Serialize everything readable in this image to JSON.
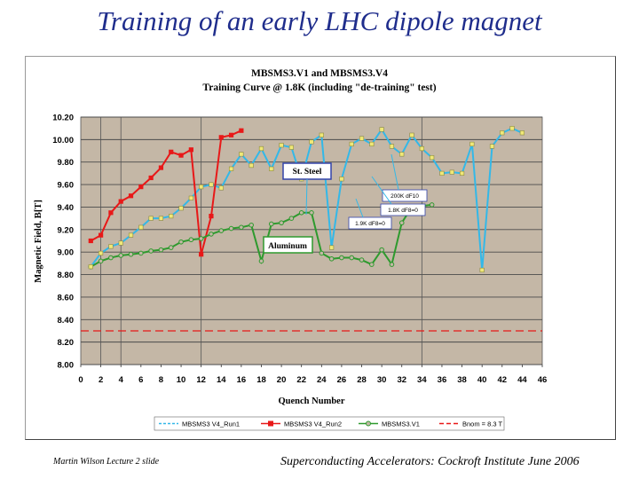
{
  "slide": {
    "title": "Training of an early LHC dipole magnet",
    "footer_left": "Martin Wilson Lecture 2 slide",
    "footer_right": "Superconducting Accelerators:  Cockroft Institute June 2006"
  },
  "chart_data": {
    "type": "line",
    "title": "MBSMS3.V1 and MBSMS3.V4",
    "subtitle": "Training Curve @ 1.8K (including \"de-training\" test)",
    "xlabel": "Quench Number",
    "ylabel": "Magnetic Field, B[T]",
    "xlim": [
      0,
      46
    ],
    "ylim": [
      8.0,
      10.2
    ],
    "xticks": [
      "0",
      "2",
      "4",
      "6",
      "8",
      "10",
      "12",
      "14",
      "16",
      "18",
      "20",
      "22",
      "24",
      "26",
      "28",
      "30",
      "32",
      "34",
      "36",
      "38",
      "40",
      "42",
      "44",
      "46"
    ],
    "yticks": [
      "8.00",
      "8.20",
      "8.40",
      "8.60",
      "8.80",
      "9.00",
      "9.20",
      "9.40",
      "9.60",
      "9.80",
      "10.00",
      "10.20"
    ],
    "grid": "major gridlines",
    "legend_position": "bottom",
    "colors": {
      "plot_background": "#c4b7a6",
      "run1": "#33b8e8",
      "run2": "#e81818",
      "v1": "#2e9a2e",
      "bnom": "#e81818"
    },
    "series": [
      {
        "name": "MBSMS3 V4_Run1",
        "color": "#33b8e8",
        "x": [
          1,
          2,
          3,
          4,
          5,
          6,
          7,
          8,
          9,
          10,
          11,
          12,
          13,
          14,
          15,
          16,
          17,
          18,
          19,
          20,
          21,
          22,
          23,
          24,
          25,
          26,
          27,
          28,
          29,
          30,
          31,
          32,
          33,
          34,
          35,
          36,
          37,
          38,
          39,
          40,
          41,
          42,
          43,
          44
        ],
        "y": [
          8.87,
          8.99,
          9.05,
          9.08,
          9.15,
          9.22,
          9.3,
          9.3,
          9.32,
          9.39,
          9.48,
          9.58,
          9.6,
          9.57,
          9.74,
          9.87,
          9.77,
          9.92,
          9.74,
          9.95,
          9.93,
          9.65,
          9.98,
          10.04,
          9.04,
          9.65,
          9.96,
          10.01,
          9.96,
          10.09,
          9.94,
          9.87,
          10.04,
          9.92,
          9.84,
          9.7,
          9.71,
          9.7,
          9.96,
          8.84,
          9.94,
          10.06,
          10.1,
          10.06
        ]
      },
      {
        "name": "MBSMS3 V4_Run2",
        "color": "#e81818",
        "x": [
          1,
          2,
          3,
          4,
          5,
          6,
          7,
          8,
          9,
          10,
          11,
          12,
          13,
          14,
          15,
          16
        ],
        "y": [
          9.1,
          9.15,
          9.35,
          9.45,
          9.5,
          9.58,
          9.66,
          9.75,
          9.89,
          9.86,
          9.91,
          8.98,
          9.32,
          10.02,
          10.04,
          10.08
        ]
      },
      {
        "name": "MBSMS3.V1",
        "color": "#2e9a2e",
        "x": [
          1,
          2,
          3,
          4,
          5,
          6,
          7,
          8,
          9,
          10,
          11,
          12,
          13,
          14,
          15,
          16,
          17,
          18,
          19,
          20,
          21,
          22,
          23,
          24,
          25,
          26,
          27,
          28,
          29,
          30,
          31,
          32,
          33,
          34,
          35
        ],
        "y": [
          8.87,
          8.92,
          8.95,
          8.97,
          8.98,
          8.99,
          9.01,
          9.02,
          9.04,
          9.09,
          9.11,
          9.12,
          9.16,
          9.19,
          9.21,
          9.22,
          9.24,
          8.92,
          9.25,
          9.26,
          9.3,
          9.35,
          9.35,
          8.99,
          8.94,
          8.95,
          8.95,
          8.93,
          8.89,
          9.02,
          8.89,
          9.26,
          9.4,
          9.41,
          9.42
        ]
      },
      {
        "name": "Bnom = 8.3 T",
        "color": "#e81818",
        "dashed": true,
        "x": [
          0,
          46
        ],
        "y": [
          8.3,
          8.3
        ]
      }
    ],
    "annotations": {
      "steel": "St. Steel",
      "aluminum": "Aluminum",
      "note1": "200K dF10",
      "note2": "1.8K dF8=0",
      "note3": "1.9K dF8=0"
    }
  }
}
